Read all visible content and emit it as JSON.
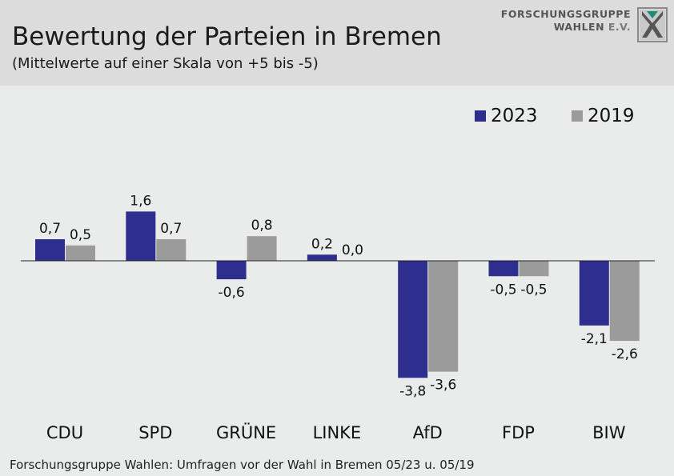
{
  "header": {
    "title": "Bewertung der Parteien in Bremen",
    "subtitle": "(Mittelwerte auf einer Skala von +5 bis -5)",
    "logo_line1": "FORSCHUNGSGRUPPE",
    "logo_line2": "WAHLEN",
    "logo_line2_suffix": "E.V."
  },
  "footer": {
    "source": "Forschungsgruppe Wahlen: Umfragen vor der Wahl in Bremen 05/23 u. 05/19"
  },
  "colors": {
    "s2023": "#2e2e8f",
    "s2019": "#9b9b9b",
    "header_bg": "#dcdcdc",
    "plot_bg": "#e9eceb"
  },
  "chart_data": {
    "type": "bar",
    "categories": [
      "CDU",
      "SPD",
      "GRÜNE",
      "LINKE",
      "AfD",
      "FDP",
      "BIW"
    ],
    "series": [
      {
        "name": "2023",
        "values": [
          0.7,
          1.6,
          -0.6,
          0.2,
          -3.8,
          -0.5,
          -2.1
        ],
        "labels": [
          "0,7",
          "1,6",
          "-0,6",
          "0,2",
          "-3,8",
          "-0,5",
          "-2,1"
        ]
      },
      {
        "name": "2019",
        "values": [
          0.5,
          0.7,
          0.8,
          0.0,
          -3.6,
          -0.5,
          -2.6
        ],
        "labels": [
          "0,5",
          "0,7",
          "0,8",
          "0,0",
          "-3,6",
          "-0,5",
          "-2,6"
        ]
      }
    ],
    "legend": "top-right",
    "grid": false
  }
}
